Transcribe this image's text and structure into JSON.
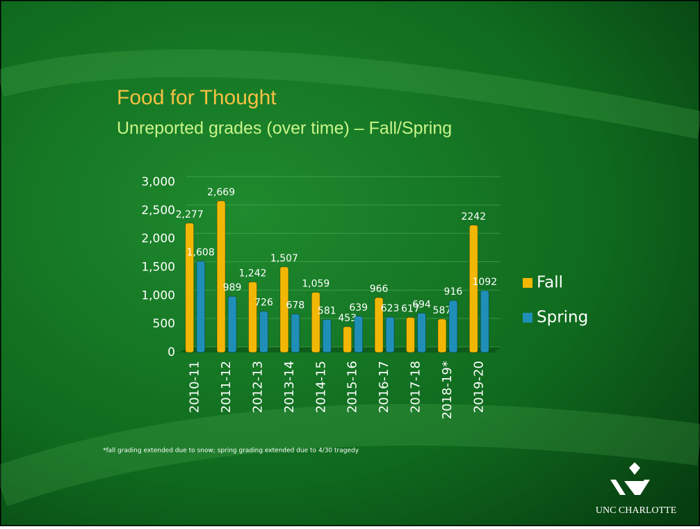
{
  "chart_data": {
    "type": "bar",
    "title": "Food for Thought",
    "subtitle": "Unreported grades (over time) – Fall/Spring",
    "categories": [
      "2010-11",
      "2011-12",
      "2012-13",
      "2013-14",
      "2014-15",
      "2015-16",
      "2016-17",
      "2017-18",
      "2018-19*",
      "2019-20"
    ],
    "series": [
      {
        "name": "Fall",
        "color": "#f2b705",
        "values": [
          2277,
          2669,
          1242,
          1507,
          1059,
          453,
          966,
          617,
          587,
          2242
        ],
        "value_labels": [
          "2,277",
          "2,669",
          "1,242",
          "1,507",
          "1,059",
          "453",
          "966",
          "617",
          "587",
          "2242"
        ]
      },
      {
        "name": "Spring",
        "color": "#1f8fb8",
        "values": [
          1608,
          989,
          726,
          678,
          581,
          639,
          623,
          694,
          916,
          1092
        ],
        "value_labels": [
          "1,608",
          "989",
          "726",
          "678",
          "581",
          "639",
          "623",
          "694",
          "916",
          "1092"
        ]
      }
    ],
    "ylim": [
      0,
      3000
    ],
    "yticks": [
      0,
      500,
      {
        "value": 1000,
        "label": "1,000"
      },
      {
        "value": 1500,
        "label": "1,500"
      },
      {
        "value": 2000,
        "label": "2,000"
      },
      {
        "value": 2500,
        "label": "2,500"
      },
      {
        "value": 3000,
        "label": "3,000"
      }
    ],
    "grid": true,
    "legend": "right",
    "footnote": "*fall grading extended due to snow; spring grading extended due to 4/30 tragedy"
  },
  "logo": {
    "text": "UNC CHARLOTTE"
  }
}
